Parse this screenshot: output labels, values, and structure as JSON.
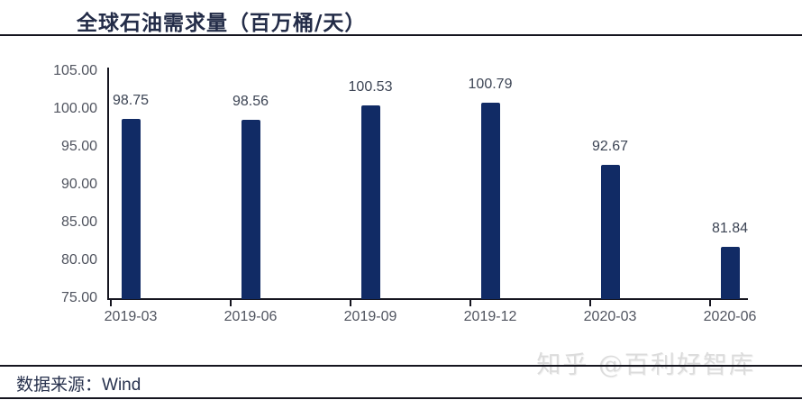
{
  "page": {
    "title": "全球石油需求量（百万桶/天）",
    "source_label": "数据来源：",
    "source_value": "Wind",
    "watermark": "知乎 @百利好智库"
  },
  "colors": {
    "bar": "#112b65",
    "axis_line": "#15151f",
    "tick_label": "#50545f",
    "value_label": "#3c4454",
    "title_text": "#232c48",
    "watermark": "#dcdcdc"
  },
  "chart_data": {
    "type": "bar",
    "title": "全球石油需求量（百万桶/天）",
    "categories": [
      "2019-03",
      "2019-06",
      "2019-09",
      "2019-12",
      "2020-03",
      "2020-06"
    ],
    "values": [
      98.75,
      98.56,
      100.53,
      100.79,
      92.67,
      81.84
    ],
    "value_labels": [
      "98.75",
      "98.56",
      "100.53",
      "100.79",
      "92.67",
      "81.84"
    ],
    "xlabel": "",
    "ylabel": "",
    "ylim": [
      75,
      105
    ],
    "ytick_step": 5,
    "yticks": [
      "105.00",
      "100.00",
      "95.00",
      "90.00",
      "85.00",
      "80.00",
      "75.00"
    ],
    "grid": false,
    "legend": false,
    "bar_color": "#112b65"
  }
}
